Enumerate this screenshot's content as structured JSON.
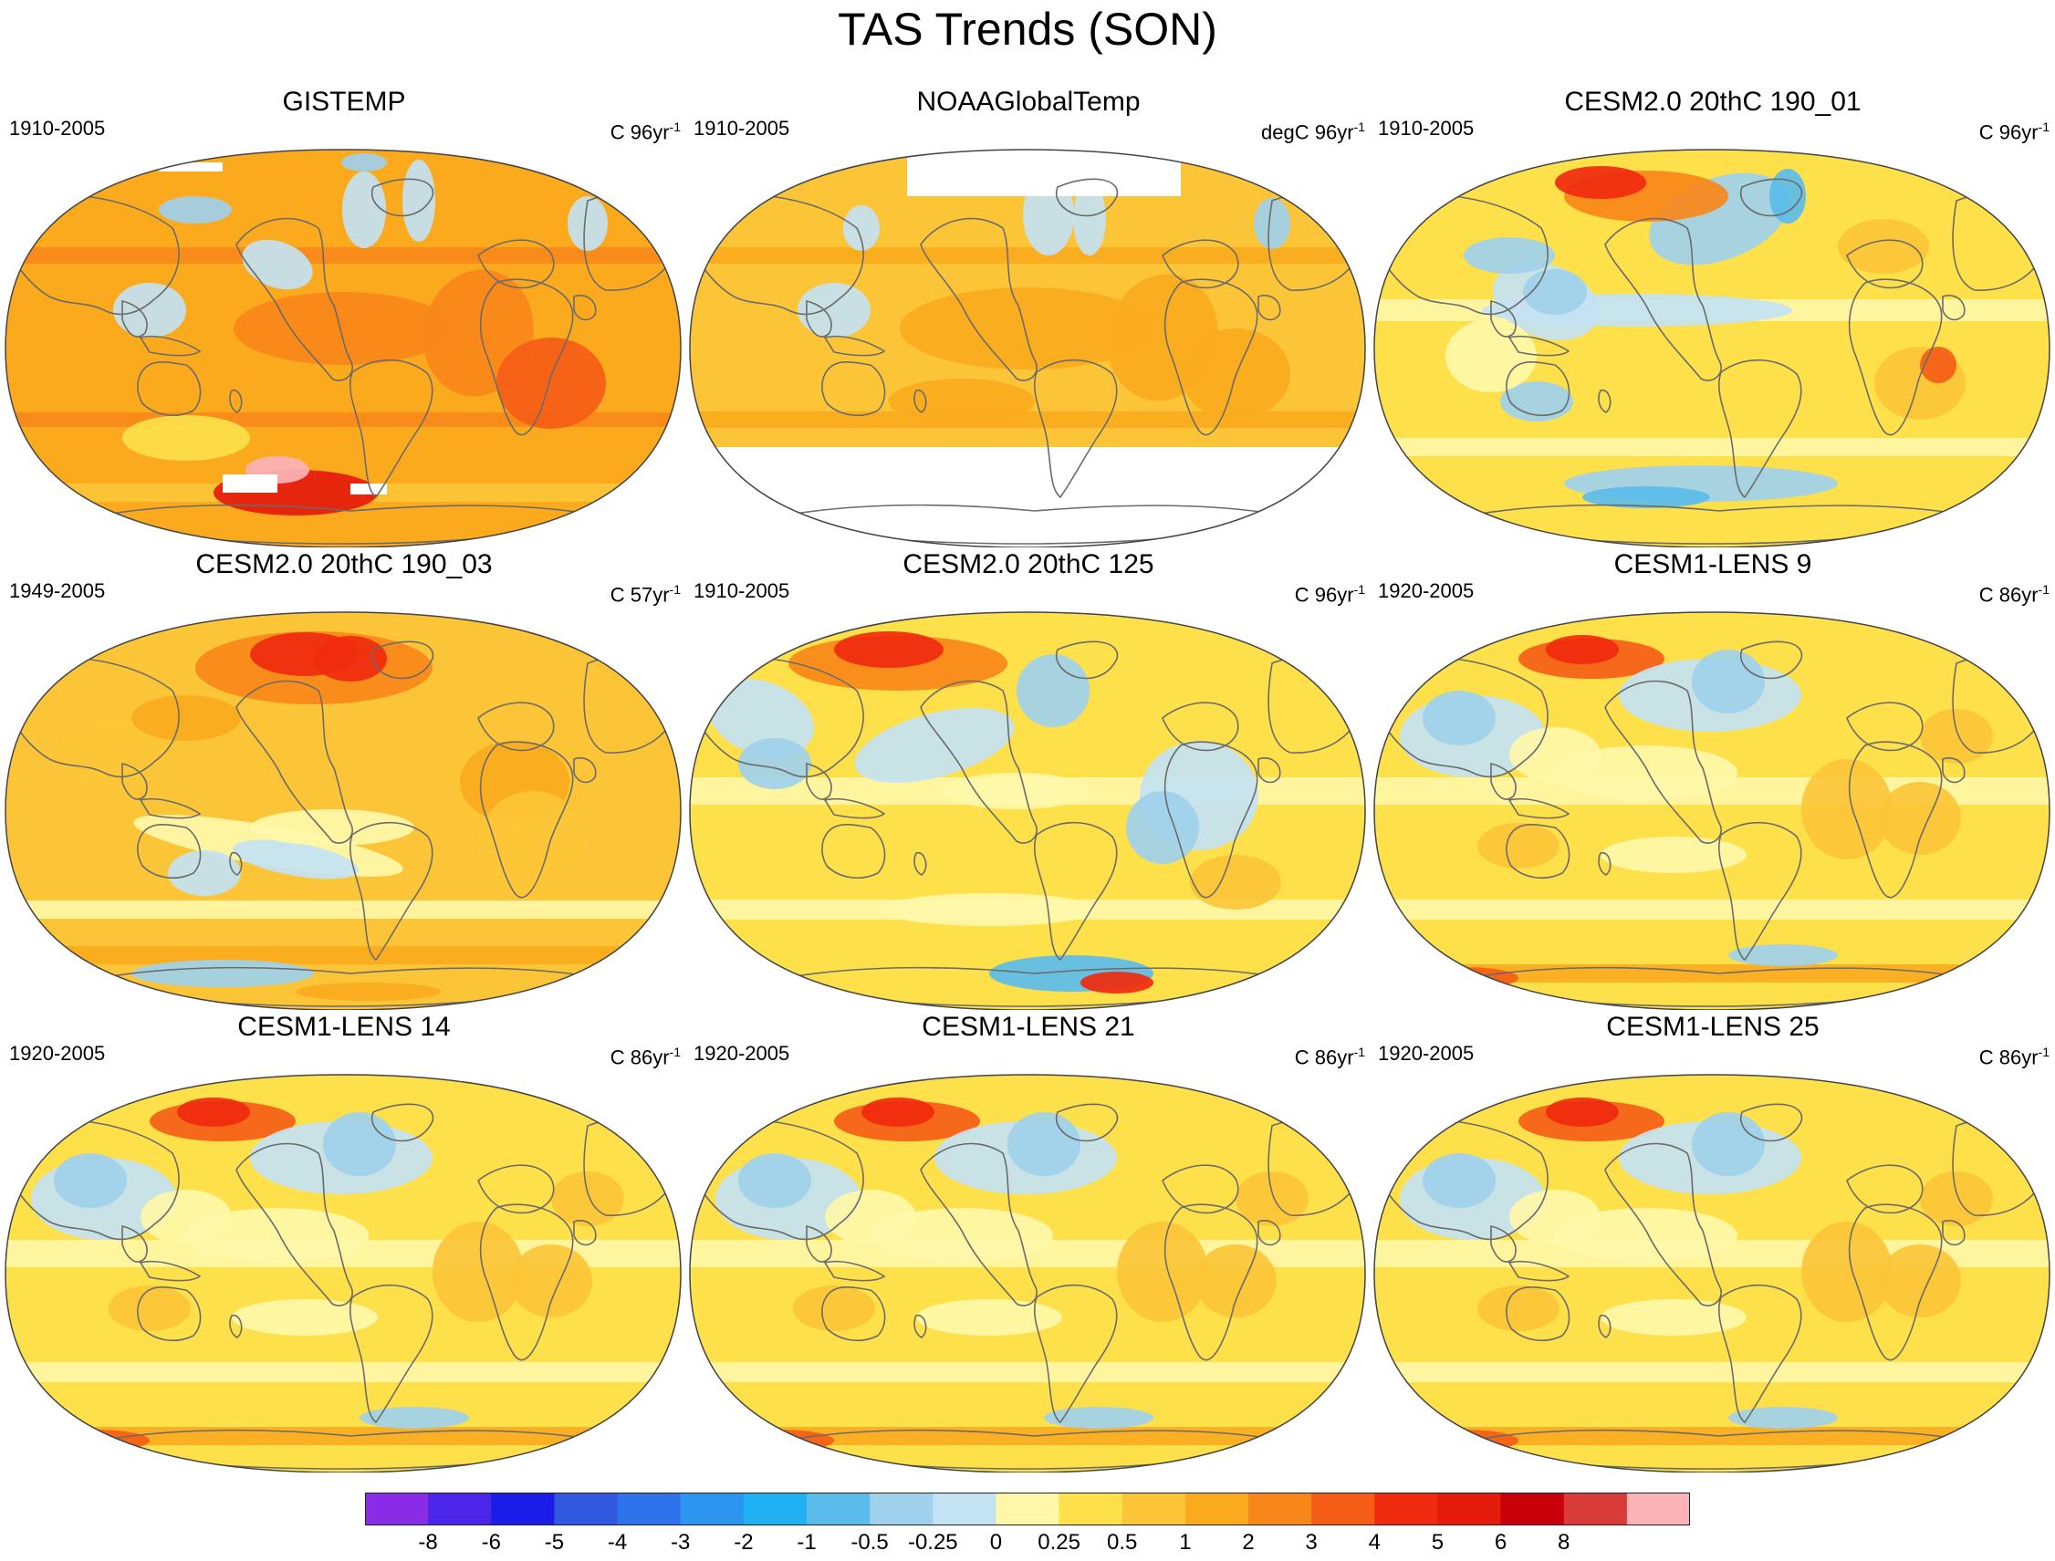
{
  "title": "TAS Trends (SON)",
  "colors": {
    "scale": [
      "#8a2be8",
      "#4b25e8",
      "#1a1ce8",
      "#3358e0",
      "#2f73ec",
      "#2b95f0",
      "#1fb1f2",
      "#5bbcec",
      "#9fd0ec",
      "#c3e2f2",
      "#fff7a8",
      "#fde04a",
      "#fcc537",
      "#fbaa1e",
      "#f88719",
      "#f55d16",
      "#f02a0e",
      "#e41a0b",
      "#c7000a",
      "#d93a3a",
      "#fcb3b8"
    ],
    "land_outline": "#6b6b6b",
    "missing": "#ffffff"
  },
  "colorbar": {
    "labels": [
      "-8",
      "-6",
      "-5",
      "-4",
      "-3",
      "-2",
      "-1",
      "-0.5",
      "-0.25",
      "0",
      "0.25",
      "0.5",
      "1",
      "2",
      "3",
      "4",
      "5",
      "6",
      "8"
    ]
  },
  "panels": [
    {
      "title": "GISTEMP",
      "period": "1910-2005",
      "units": "C 96yr",
      "units_sup": "-1",
      "pattern": "gistemp"
    },
    {
      "title": "NOAAGlobalTemp",
      "period": "1910-2005",
      "units": "degC 96yr",
      "units_sup": "-1",
      "pattern": "noaa"
    },
    {
      "title": "CESM2.0 20thC 190_01",
      "period": "1910-2005",
      "units": "C 96yr",
      "units_sup": "-1",
      "pattern": "cesm2_01"
    },
    {
      "title": "CESM2.0 20thC 190_03",
      "period": "1949-2005",
      "units": "C 57yr",
      "units_sup": "-1",
      "pattern": "cesm2_03"
    },
    {
      "title": "CESM2.0 20thC 125",
      "period": "1910-2005",
      "units": "C 96yr",
      "units_sup": "-1",
      "pattern": "cesm2_125"
    },
    {
      "title": "CESM1-LENS 9",
      "period": "1920-2005",
      "units": "C 86yr",
      "units_sup": "-1",
      "pattern": "lens"
    },
    {
      "title": "CESM1-LENS 14",
      "period": "1920-2005",
      "units": "C 86yr",
      "units_sup": "-1",
      "pattern": "lens"
    },
    {
      "title": "CESM1-LENS 21",
      "period": "1920-2005",
      "units": "C 86yr",
      "units_sup": "-1",
      "pattern": "lens"
    },
    {
      "title": "CESM1-LENS 25",
      "period": "1920-2005",
      "units": "C 86yr",
      "units_sup": "-1",
      "pattern": "lens"
    }
  ],
  "chart_data": {
    "type": "heatmap",
    "title": "TAS Trends (SON)",
    "projection": "Robinson (global)",
    "colorbar_levels": [
      -8,
      -6,
      -5,
      -4,
      -3,
      -2,
      -1,
      -0.5,
      -0.25,
      0,
      0.25,
      0.5,
      1,
      2,
      3,
      4,
      5,
      6,
      8
    ],
    "panels": [
      "GISTEMP",
      "NOAAGlobalTemp",
      "CESM2.0 20thC 190_01",
      "CESM2.0 20thC 190_03",
      "CESM2.0 20thC 125",
      "CESM1-LENS 9",
      "CESM1-LENS 14",
      "CESM1-LENS 21",
      "CESM1-LENS 25"
    ]
  }
}
